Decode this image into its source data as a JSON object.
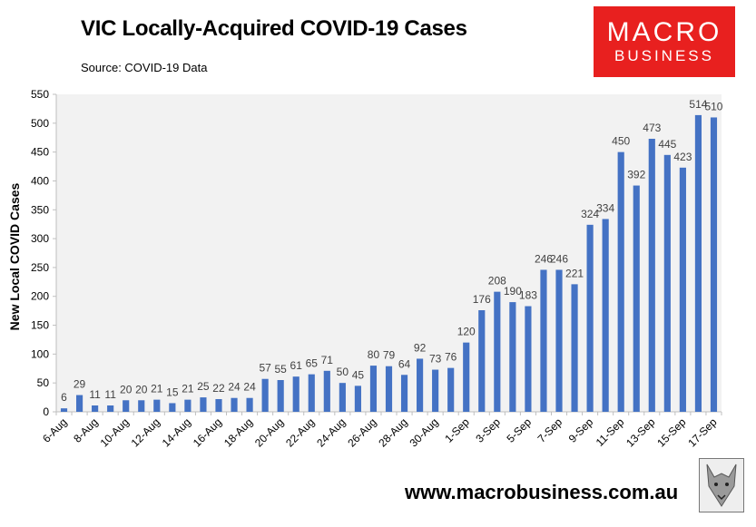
{
  "header": {
    "title": "VIC Locally-Acquired COVID-19 Cases",
    "source": "Source: COVID-19 Data"
  },
  "logo": {
    "line1": "MACRO",
    "line2": "BUSINESS"
  },
  "footer": {
    "website": "www.macrobusiness.com.au"
  },
  "colors": {
    "bar": "#4472c4",
    "plot_bg": "#f2f2f2",
    "logo_red": "#e8201f"
  },
  "chart_data": {
    "type": "bar",
    "title": "VIC Locally-Acquired COVID-19 Cases",
    "xlabel": "",
    "ylabel": "New Local COVID Cases",
    "ylim": [
      0,
      550
    ],
    "yticks": [
      0,
      50,
      100,
      150,
      200,
      250,
      300,
      350,
      400,
      450,
      500,
      550
    ],
    "grid": false,
    "categories": [
      "6-Aug",
      "7-Aug",
      "8-Aug",
      "9-Aug",
      "10-Aug",
      "11-Aug",
      "12-Aug",
      "13-Aug",
      "14-Aug",
      "15-Aug",
      "16-Aug",
      "17-Aug",
      "18-Aug",
      "19-Aug",
      "20-Aug",
      "21-Aug",
      "22-Aug",
      "23-Aug",
      "24-Aug",
      "25-Aug",
      "26-Aug",
      "27-Aug",
      "28-Aug",
      "29-Aug",
      "30-Aug",
      "31-Aug",
      "1-Sep",
      "2-Sep",
      "3-Sep",
      "4-Sep",
      "5-Sep",
      "6-Sep",
      "7-Sep",
      "8-Sep",
      "9-Sep",
      "10-Sep",
      "11-Sep",
      "12-Sep",
      "13-Sep",
      "14-Sep",
      "15-Sep",
      "16-Sep",
      "17-Sep"
    ],
    "xtick_labels": [
      "6-Aug",
      "8-Aug",
      "10-Aug",
      "12-Aug",
      "14-Aug",
      "16-Aug",
      "18-Aug",
      "20-Aug",
      "22-Aug",
      "24-Aug",
      "26-Aug",
      "28-Aug",
      "30-Aug",
      "1-Sep",
      "3-Sep",
      "5-Sep",
      "7-Sep",
      "9-Sep",
      "11-Sep",
      "13-Sep",
      "15-Sep",
      "17-Sep"
    ],
    "values": [
      6,
      29,
      11,
      11,
      20,
      20,
      21,
      15,
      21,
      25,
      22,
      24,
      24,
      57,
      55,
      61,
      65,
      71,
      50,
      45,
      80,
      79,
      64,
      92,
      73,
      76,
      120,
      176,
      208,
      190,
      183,
      246,
      246,
      221,
      324,
      334,
      450,
      392,
      473,
      445,
      423,
      514,
      510
    ]
  }
}
